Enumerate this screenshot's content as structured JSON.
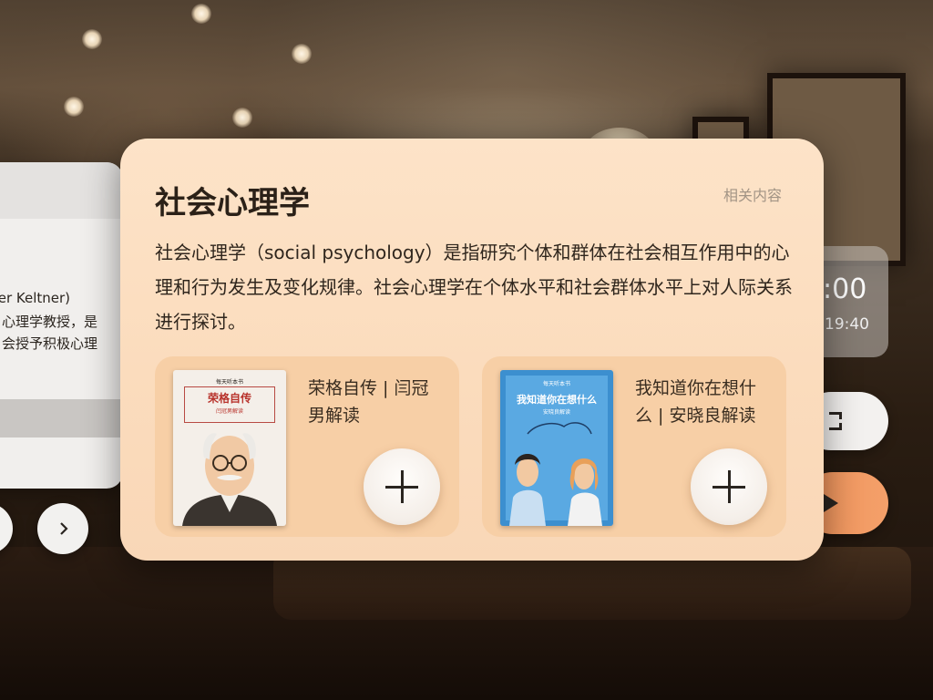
{
  "card": {
    "title": "社会心理学",
    "related_label": "相关内容",
    "description": "社会心理学（social psychology）是指研究个体和群体在社会相互作用中的心理和行为发生及变化规律。社会心理学在个体水平和社会群体水平上对人际关系进行探讨。"
  },
  "items": [
    {
      "title": "荣格自传 | 闫冠男解读",
      "cover_brand": "每天听本书",
      "cover_title": "荣格自传",
      "cover_subtitle": "闫冠男解读",
      "add_icon": "plus-icon"
    },
    {
      "title": "我知道你在想什么 | 安晓良解读",
      "cover_brand": "每天听本书",
      "cover_title": "我知道你在想什么",
      "cover_subtitle": "安晓良解读",
      "add_icon": "plus-icon"
    }
  ],
  "left_panel": {
    "line1": "cher Keltner)",
    "line2": "心理学教授，是",
    "line3": "会授予积极心理"
  },
  "right_widget": {
    "time": ":00",
    "subtime": "19:40"
  },
  "icons": {
    "prev": "chevron-left-icon",
    "next": "chevron-right-icon",
    "expand": "expand-icon",
    "play": "play-icon"
  },
  "colors": {
    "card_bg": "#fde3c8",
    "item_bg": "#f7cfa6",
    "accent_orange": "#f0935a",
    "title_text": "#2b2118",
    "muted_text": "#a29485"
  }
}
